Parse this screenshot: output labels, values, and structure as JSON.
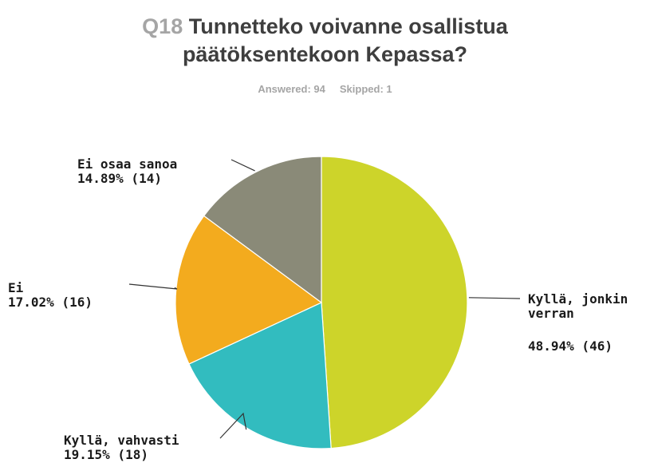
{
  "header": {
    "question_number": "Q18",
    "title_line1": "Tunnetteko voivanne osallistua",
    "title_line2": "päätöksentekoon Kepassa?",
    "answered": "Answered: 94",
    "skipped": "Skipped: 1"
  },
  "chart_data": {
    "type": "pie",
    "start": "12 o'clock",
    "direction": "clockwise",
    "slices": [
      {
        "label": "Kyllä, jonkin verran",
        "label_line1": "Kyllä, jonkin",
        "label_line2": "verran",
        "percent": 48.94,
        "count": 46,
        "value_text": "48.94% (46)",
        "color": "#cdd42a"
      },
      {
        "label": "Kyllä, vahvasti",
        "percent": 19.15,
        "count": 18,
        "value_text": "19.15% (18)",
        "color": "#32bcbf"
      },
      {
        "label": "Ei",
        "percent": 17.02,
        "count": 16,
        "value_text": "17.02% (16)",
        "color": "#f3ab1e"
      },
      {
        "label": "Ei osaa sanoa",
        "percent": 14.89,
        "count": 14,
        "value_text": "14.89% (14)",
        "color": "#8a8a78"
      }
    ]
  }
}
